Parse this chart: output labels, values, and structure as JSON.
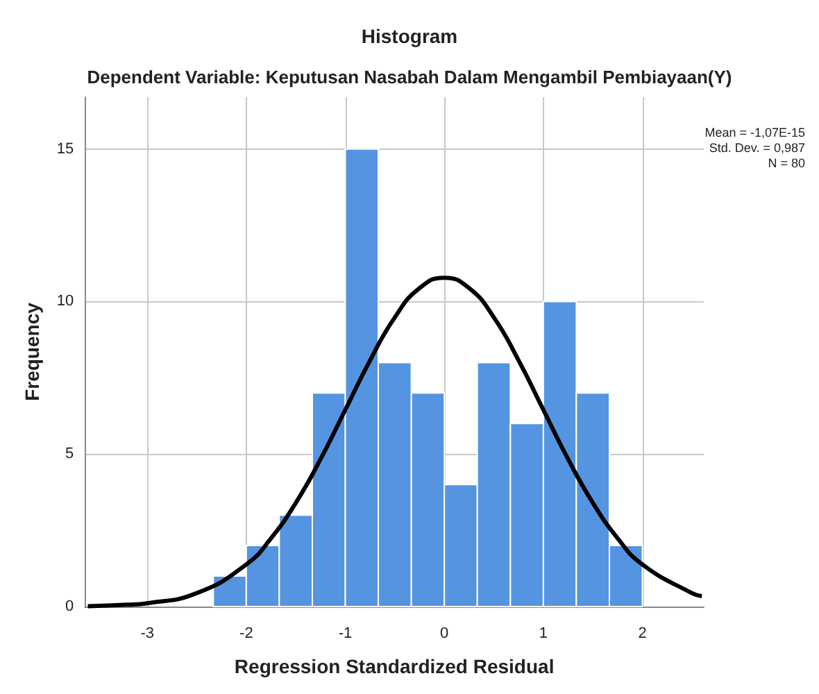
{
  "chart_data": {
    "type": "histogram",
    "title": "Histogram",
    "subtitle": "Dependent Variable: Keputusan Nasabah Dalam Mengambil Pembiayaan(Y)",
    "xlabel": "Regression Standardized Residual",
    "ylabel": "Frequency",
    "bins": [
      -2.333,
      -2,
      -1.667,
      -1.333,
      -1,
      -0.667,
      -0.333,
      0,
      0.333,
      0.667,
      1,
      1.333,
      1.667,
      2
    ],
    "values": [
      1,
      2,
      3,
      7,
      15,
      8,
      7,
      4,
      8,
      6,
      10,
      7,
      2
    ],
    "color": "#5594e0",
    "series": [
      {
        "type": "line",
        "color": "#000000",
        "x": [
          -3.6,
          -3.2,
          -3,
          -2.5,
          -2,
          -1.75,
          -1.5,
          -1.25,
          -1,
          -0.75,
          -0.5,
          -0.25,
          0,
          0.25,
          0.5,
          0.75,
          1,
          1.25,
          1.5,
          1.75,
          2,
          2.5,
          2.6
        ],
        "values": [
          0.01,
          0.06,
          0.11,
          0.44,
          1.38,
          2.24,
          3.4,
          4.83,
          6.45,
          8.07,
          9.48,
          10.44,
          10.78,
          10.44,
          9.48,
          8.07,
          6.45,
          4.83,
          3.4,
          2.24,
          1.38,
          0.44,
          0.34
        ]
      }
    ],
    "xlim": [
      -3.63,
      2.62
    ],
    "ylim": [
      0,
      16.7
    ],
    "xticks": [
      -3,
      -2,
      -1,
      0,
      1,
      2
    ],
    "yticks": [
      0,
      5,
      10,
      15
    ],
    "grid": true,
    "marker": "none",
    "line_style": "solid",
    "annotations": [
      "Mean = -1,07E-15",
      "Std. Dev. = 0,987",
      "N = 80"
    ]
  }
}
